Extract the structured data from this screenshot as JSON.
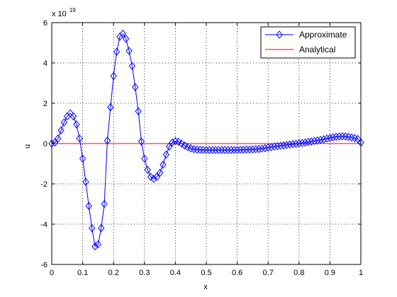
{
  "chart_data": {
    "type": "line",
    "xlabel": "x",
    "ylabel": "u",
    "y_exponent_label": "x 10",
    "y_exponent_power": "19",
    "xlim": [
      0,
      1
    ],
    "ylim": [
      -6,
      6
    ],
    "x_ticks": [
      0,
      0.1,
      0.2,
      0.3,
      0.4,
      0.5,
      0.6,
      0.7,
      0.8,
      0.9,
      1
    ],
    "x_tick_labels": [
      "0",
      "0.1",
      "0.2",
      "0.3",
      "0.4",
      "0.5",
      "0.6",
      "0.7",
      "0.8",
      "0.9",
      "1"
    ],
    "y_ticks": [
      -6,
      -4,
      -2,
      0,
      2,
      4,
      6
    ],
    "y_tick_labels": [
      "-6",
      "-4",
      "-2",
      "0",
      "2",
      "4",
      "6"
    ],
    "grid": true,
    "legend_position": "top-right",
    "series": [
      {
        "name": "Approximate",
        "color": "#0000ff",
        "marker": "diamond",
        "x": [
          0.0,
          0.01,
          0.02,
          0.03,
          0.04,
          0.05,
          0.06,
          0.07,
          0.08,
          0.09,
          0.1,
          0.11,
          0.12,
          0.13,
          0.14,
          0.15,
          0.16,
          0.17,
          0.18,
          0.19,
          0.2,
          0.21,
          0.22,
          0.23,
          0.24,
          0.25,
          0.26,
          0.27,
          0.28,
          0.29,
          0.3,
          0.31,
          0.32,
          0.33,
          0.34,
          0.35,
          0.36,
          0.37,
          0.38,
          0.39,
          0.4,
          0.41,
          0.42,
          0.43,
          0.44,
          0.45,
          0.46,
          0.47,
          0.48,
          0.49,
          0.5,
          0.51,
          0.52,
          0.53,
          0.54,
          0.55,
          0.56,
          0.57,
          0.58,
          0.59,
          0.6,
          0.61,
          0.62,
          0.63,
          0.64,
          0.65,
          0.66,
          0.67,
          0.68,
          0.69,
          0.7,
          0.71,
          0.72,
          0.73,
          0.74,
          0.75,
          0.76,
          0.77,
          0.78,
          0.79,
          0.8,
          0.81,
          0.82,
          0.83,
          0.84,
          0.85,
          0.86,
          0.87,
          0.88,
          0.89,
          0.9,
          0.91,
          0.92,
          0.93,
          0.94,
          0.95,
          0.96,
          0.97,
          0.98,
          0.99,
          1.0
        ],
        "y": [
          0.0,
          0.05,
          0.25,
          0.65,
          1.05,
          1.35,
          1.5,
          1.35,
          0.95,
          0.25,
          -0.75,
          -1.9,
          -3.1,
          -4.2,
          -5.1,
          -5.0,
          -4.2,
          -3.0,
          0.15,
          1.8,
          3.35,
          4.55,
          5.3,
          5.45,
          5.2,
          4.6,
          3.85,
          2.8,
          1.6,
          0.1,
          -0.75,
          -1.3,
          -1.65,
          -1.75,
          -1.65,
          -1.45,
          -1.05,
          -0.55,
          -0.15,
          0.05,
          0.12,
          0.08,
          0.0,
          -0.1,
          -0.18,
          -0.24,
          -0.28,
          -0.3,
          -0.31,
          -0.32,
          -0.32,
          -0.32,
          -0.32,
          -0.32,
          -0.32,
          -0.32,
          -0.32,
          -0.32,
          -0.32,
          -0.32,
          -0.32,
          -0.31,
          -0.31,
          -0.3,
          -0.3,
          -0.29,
          -0.28,
          -0.27,
          -0.25,
          -0.23,
          -0.2,
          -0.18,
          -0.15,
          -0.13,
          -0.11,
          -0.09,
          -0.07,
          -0.05,
          -0.03,
          -0.01,
          0.01,
          0.03,
          0.05,
          0.08,
          0.1,
          0.13,
          0.15,
          0.18,
          0.21,
          0.25,
          0.28,
          0.31,
          0.33,
          0.35,
          0.36,
          0.35,
          0.33,
          0.3,
          0.27,
          0.22,
          0.05
        ]
      },
      {
        "name": "Analytical",
        "color": "#ff0000",
        "marker": "none",
        "x": [
          0,
          1
        ],
        "y": [
          0,
          0
        ]
      }
    ]
  }
}
